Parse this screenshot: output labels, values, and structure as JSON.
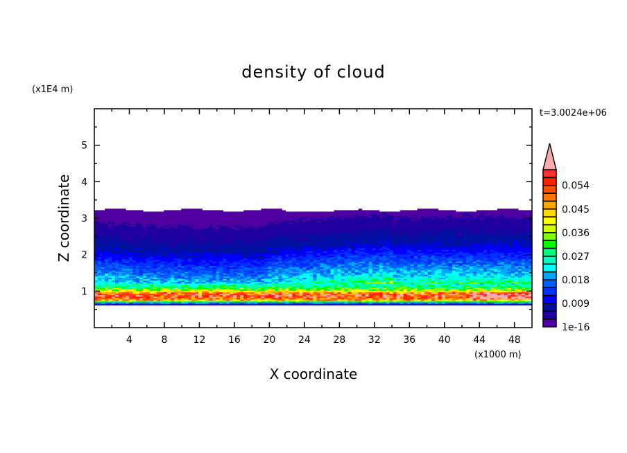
{
  "chart_data": {
    "type": "heatmap",
    "title": "density of cloud",
    "xlabel": "X coordinate",
    "ylabel": "Z coordinate",
    "x_unit": "(x1000 m)",
    "y_unit": "(x1E4 m)",
    "time_label": "t=3.0024e+06",
    "xlim": [
      0,
      50
    ],
    "ylim": [
      0,
      6
    ],
    "x_ticks": [
      4,
      8,
      12,
      16,
      20,
      24,
      28,
      32,
      36,
      40,
      44,
      48
    ],
    "y_ticks": [
      1,
      2,
      3,
      4,
      5
    ],
    "grid": false,
    "colorbar": {
      "position": "right",
      "levels": [
        1e-16,
        0.003,
        0.006,
        0.009,
        0.012,
        0.015,
        0.018,
        0.021,
        0.024,
        0.027,
        0.03,
        0.033,
        0.036,
        0.039,
        0.042,
        0.045,
        0.048,
        0.051,
        0.054,
        0.057,
        0.06
      ],
      "labels": [
        "1e-16",
        "0.009",
        "0.018",
        "0.027",
        "0.036",
        "0.045",
        "0.054"
      ],
      "colors": [
        "#5000a0",
        "#2000a0",
        "#0010a0",
        "#0000ff",
        "#0030ff",
        "#0060ff",
        "#00a8ff",
        "#00ffff",
        "#00ffc0",
        "#00ff80",
        "#00ff00",
        "#80ff00",
        "#d0ff00",
        "#ffff00",
        "#ffd800",
        "#ffa800",
        "#ff7800",
        "#ff5000",
        "#ff2000",
        "#ff3030"
      ],
      "over_color": "#ffaaaa"
    },
    "cloud_layer": {
      "z_bottom": 0.62,
      "z_top": 3.2
    },
    "mean_profile": {
      "z": [
        0.62,
        0.68,
        0.74,
        0.8,
        0.86,
        0.92,
        0.98,
        1.05,
        1.15,
        1.3,
        1.5,
        1.7,
        1.9,
        2.1,
        2.3,
        2.6,
        2.9,
        3.2
      ],
      "density": [
        0.006,
        0.022,
        0.045,
        0.054,
        0.057,
        0.052,
        0.04,
        0.032,
        0.026,
        0.021,
        0.018,
        0.015,
        0.012,
        0.009,
        0.007,
        0.005,
        0.003,
        0.001
      ]
    }
  }
}
